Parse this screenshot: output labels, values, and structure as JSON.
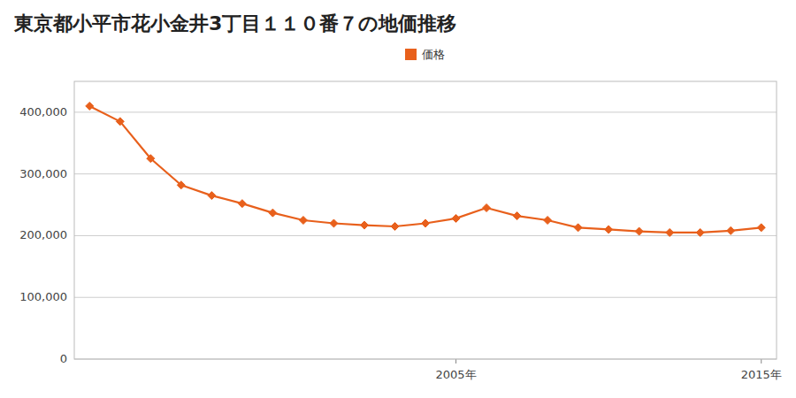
{
  "chart_data": {
    "type": "line",
    "title": "東京都小平市花小金井3丁目１１０番７の地価推移",
    "x": [
      1993,
      1994,
      1995,
      1996,
      1997,
      1998,
      1999,
      2000,
      2001,
      2002,
      2003,
      2004,
      2005,
      2006,
      2007,
      2008,
      2009,
      2010,
      2011,
      2012,
      2013,
      2014,
      2015
    ],
    "series": [
      {
        "name": "価格",
        "color": "#e8601c",
        "marker": "diamond",
        "line_style": "solid",
        "values": [
          410000,
          385000,
          325000,
          282000,
          265000,
          252000,
          237000,
          225000,
          220000,
          217000,
          215000,
          220000,
          228000,
          245000,
          232000,
          225000,
          213000,
          210000,
          207000,
          205000,
          205000,
          208000,
          213000
        ]
      }
    ],
    "xlim": [
      1992.5,
      2015.5
    ],
    "xticks": [
      {
        "value": 2005,
        "label": "2005年"
      },
      {
        "value": 2015,
        "label": "2015年"
      }
    ],
    "ylim": [
      0,
      450000
    ],
    "yticks": [
      0,
      {
        "value": 100000,
        "label": "100,000"
      },
      {
        "value": 200000,
        "label": "200,000"
      },
      {
        "value": 300000,
        "label": "300,000"
      },
      {
        "value": 400000,
        "label": "400,000"
      }
    ],
    "grid": true,
    "legend": "top"
  }
}
